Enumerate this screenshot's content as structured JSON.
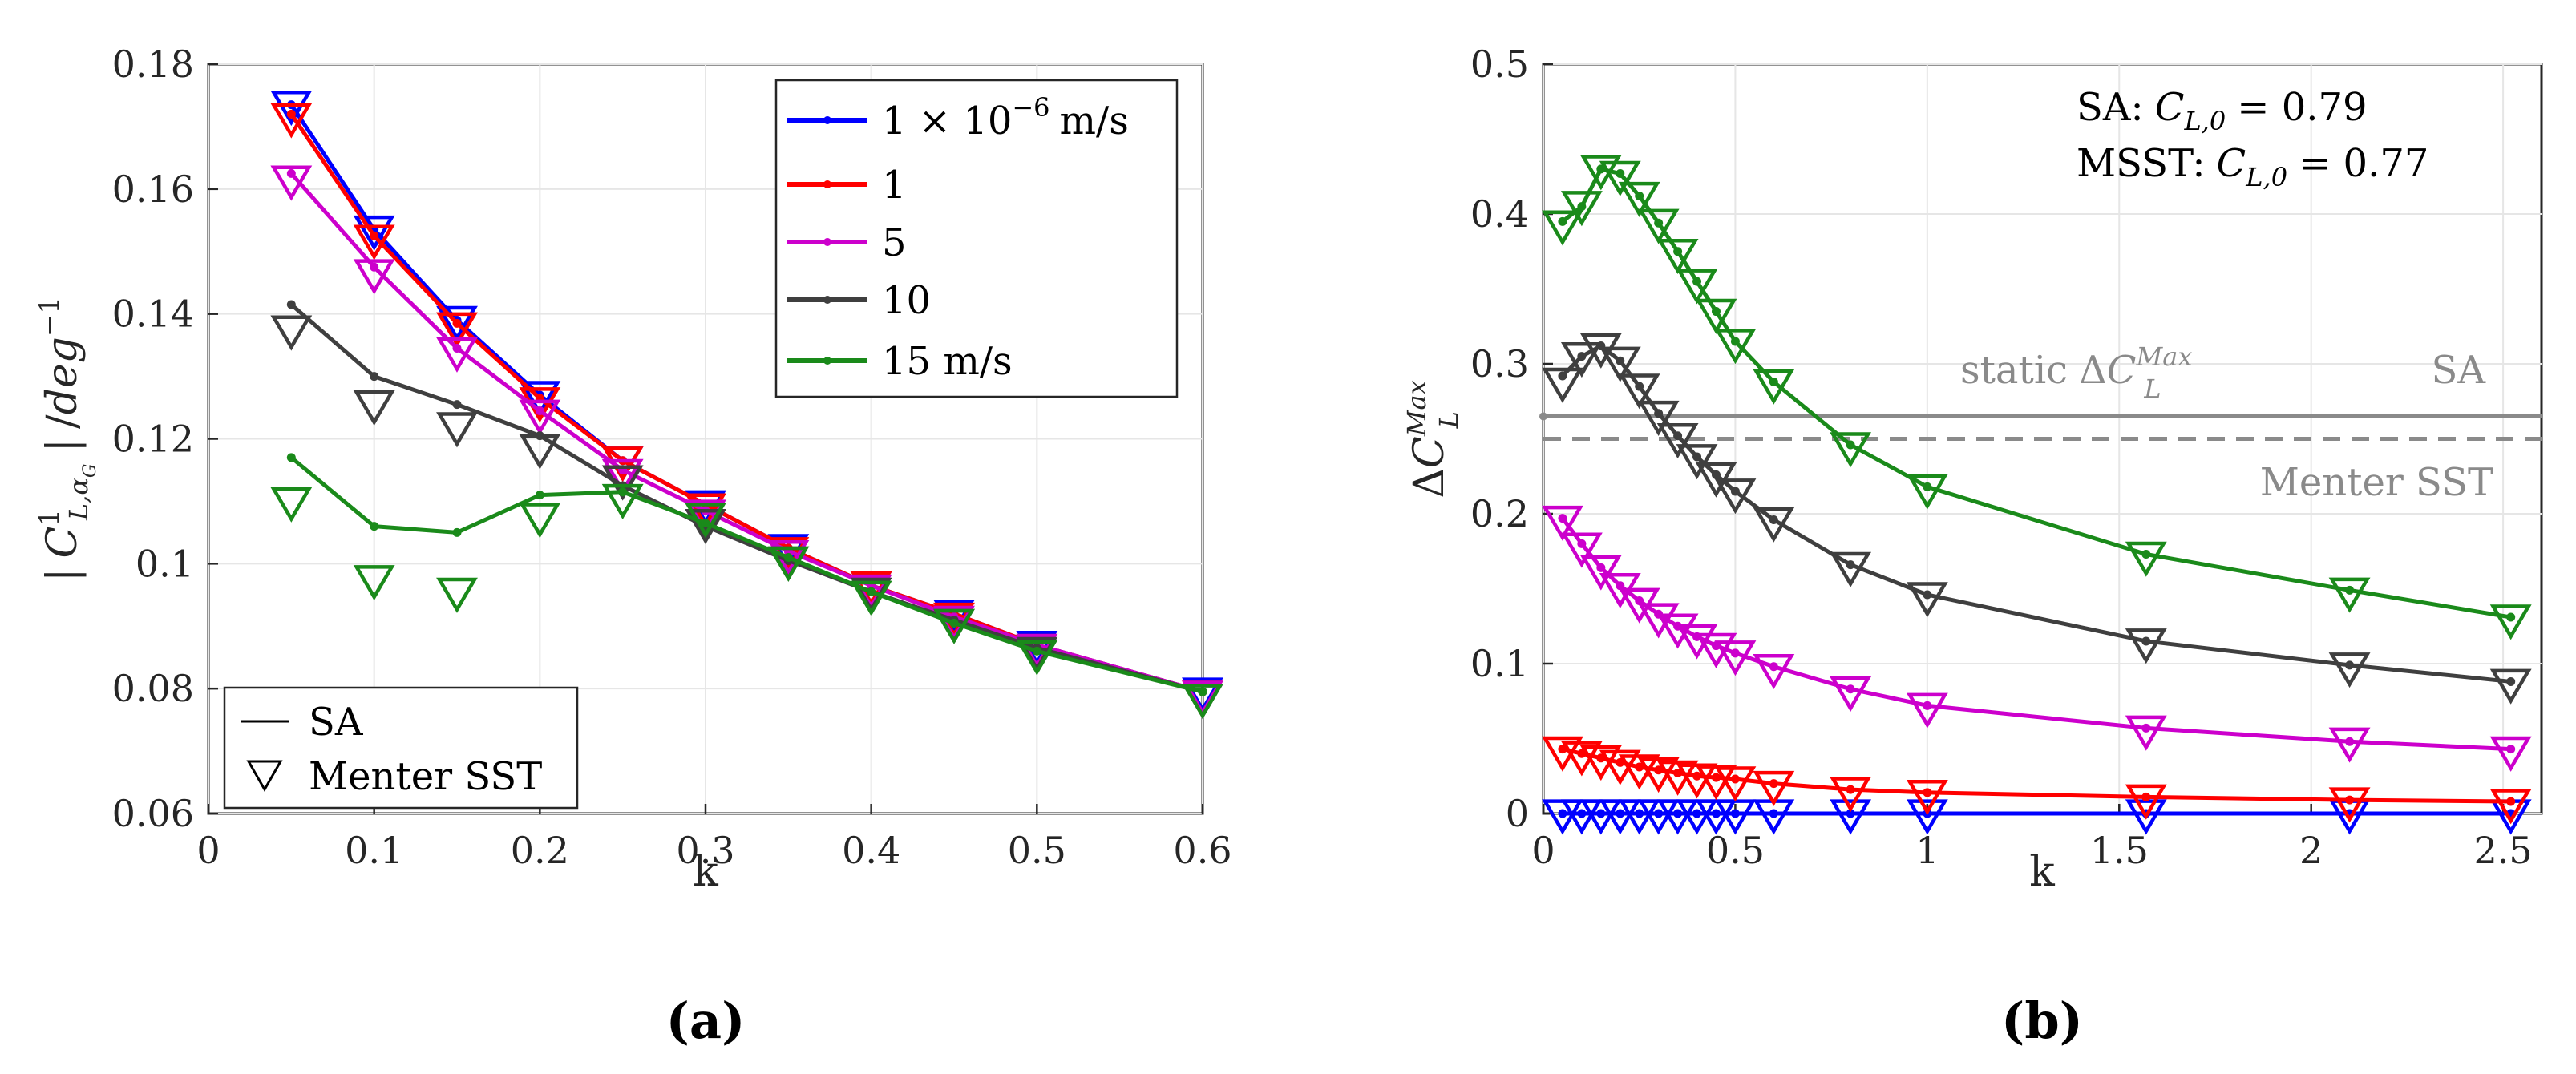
{
  "chart_data": [
    {
      "type": "line",
      "panel": "(a)",
      "xlabel": "k",
      "ylabel": "| C¹_{L,αG} | /deg⁻¹",
      "xlim": [
        0,
        0.6
      ],
      "ylim": [
        0.06,
        0.18
      ],
      "xticks": [
        "0",
        "0.1",
        "0.2",
        "0.3",
        "0.4",
        "0.5",
        "0.6"
      ],
      "yticks": [
        "0.06",
        "0.08",
        "0.1",
        "0.12",
        "0.14",
        "0.16",
        "0.18"
      ],
      "grid": true,
      "series": [
        {
          "name": "1 × 10⁻⁶ m/s",
          "color": "#0000ff",
          "sa": {
            "x": [
              0.05,
              0.1,
              0.15,
              0.2,
              0.25,
              0.3,
              0.35,
              0.4,
              0.45,
              0.5,
              0.6
            ],
            "y": [
              0.1735,
              0.1535,
              0.139,
              0.127,
              0.1165,
              0.1095,
              0.1025,
              0.0965,
              0.092,
              0.087,
              0.0795
            ]
          },
          "sst": {
            "x": [
              0.05,
              0.1,
              0.15,
              0.2,
              0.25,
              0.3,
              0.35,
              0.4,
              0.45,
              0.5,
              0.6
            ],
            "y": [
              0.1735,
              0.1535,
              0.139,
              0.127,
              0.1165,
              0.1095,
              0.1025,
              0.0965,
              0.092,
              0.087,
              0.0795
            ]
          }
        },
        {
          "name": "1",
          "color": "#ff0000",
          "sa": {
            "x": [
              0.05,
              0.1,
              0.15,
              0.2,
              0.25,
              0.3,
              0.35,
              0.4,
              0.45,
              0.5,
              0.6
            ],
            "y": [
              0.172,
              0.1525,
              0.1385,
              0.1265,
              0.1165,
              0.1095,
              0.1025,
              0.0965,
              0.092,
              0.087,
              0.0795
            ]
          },
          "sst": {
            "x": [
              0.05,
              0.1,
              0.15,
              0.2,
              0.25,
              0.3,
              0.35,
              0.4,
              0.45,
              0.5,
              0.6
            ],
            "y": [
              0.1715,
              0.152,
              0.138,
              0.126,
              0.1165,
              0.109,
              0.102,
              0.0965,
              0.0915,
              0.0865,
              0.079
            ]
          }
        },
        {
          "name": "5",
          "color": "#cc00cc",
          "sa": {
            "x": [
              0.05,
              0.1,
              0.15,
              0.2,
              0.25,
              0.3,
              0.35,
              0.4,
              0.45,
              0.5,
              0.6
            ],
            "y": [
              0.1625,
              0.1475,
              0.1345,
              0.1245,
              0.115,
              0.1085,
              0.102,
              0.0965,
              0.0915,
              0.087,
              0.0795
            ]
          },
          "sst": {
            "x": [
              0.05,
              0.1,
              0.15,
              0.2,
              0.25,
              0.3,
              0.35,
              0.4,
              0.45,
              0.5,
              0.6
            ],
            "y": [
              0.1615,
              0.1465,
              0.134,
              0.124,
              0.1145,
              0.108,
              0.1015,
              0.096,
              0.091,
              0.0865,
              0.079
            ]
          }
        },
        {
          "name": "10",
          "color": "#3f3f3f",
          "sa": {
            "x": [
              0.05,
              0.1,
              0.15,
              0.2,
              0.25,
              0.3,
              0.35,
              0.4,
              0.45,
              0.5,
              0.6
            ],
            "y": [
              0.1415,
              0.13,
              0.1255,
              0.1205,
              0.1125,
              0.106,
              0.1005,
              0.0955,
              0.091,
              0.0865,
              0.0795
            ]
          },
          "sst": {
            "x": [
              0.05,
              0.1,
              0.15,
              0.2,
              0.25,
              0.3,
              0.35,
              0.4,
              0.45,
              0.5,
              0.6
            ],
            "y": [
              0.1375,
              0.1255,
              0.122,
              0.1185,
              0.1135,
              0.1065,
              0.1005,
              0.0955,
              0.0905,
              0.086,
              0.0785
            ]
          }
        },
        {
          "name": "15 m/s",
          "color": "#1a8a1a",
          "sa": {
            "x": [
              0.05,
              0.1,
              0.15,
              0.2,
              0.25,
              0.3,
              0.35,
              0.4,
              0.45,
              0.5,
              0.6
            ],
            "y": [
              0.117,
              0.106,
              0.105,
              0.111,
              0.1115,
              0.1065,
              0.101,
              0.0955,
              0.0905,
              0.086,
              0.0795
            ]
          },
          "sst": {
            "x": [
              0.05,
              0.1,
              0.15,
              0.2,
              0.25,
              0.3,
              0.35,
              0.4,
              0.45,
              0.5,
              0.6
            ],
            "y": [
              0.11,
              0.0975,
              0.0955,
              0.1075,
              0.1105,
              0.1075,
              0.1005,
              0.095,
              0.0905,
              0.0855,
              0.0785
            ]
          }
        }
      ],
      "legend_top": {
        "entries": [
          "1 × 10",
          "−6",
          "m/s",
          "1",
          "5",
          "10",
          "15 m/s"
        ],
        "placement": "top-right"
      },
      "legend_bottom": {
        "entries": [
          "SA",
          "Menter SST"
        ],
        "placement": "bottom-left"
      }
    },
    {
      "type": "line",
      "panel": "(b)",
      "xlabel": "k",
      "ylabel": "ΔC_L^{Max}",
      "xlim": [
        0,
        2.6
      ],
      "ylim": [
        0,
        0.5
      ],
      "xticks": [
        "0",
        "0.5",
        "1",
        "1.5",
        "2",
        "2.5"
      ],
      "yticks": [
        "0",
        "0.1",
        "0.2",
        "0.3",
        "0.4",
        "0.5"
      ],
      "grid": true,
      "series": [
        {
          "name": "1 × 10⁻⁶ m/s",
          "color": "#0000ff",
          "sa": {
            "x": [
              0.05,
              0.1,
              0.15,
              0.2,
              0.25,
              0.3,
              0.35,
              0.4,
              0.45,
              0.5,
              0.6,
              0.8,
              1.0,
              1.57,
              2.1,
              2.52
            ],
            "y": [
              0,
              0,
              0,
              0,
              0,
              0,
              0,
              0,
              0,
              0,
              0,
              0,
              0,
              0,
              0,
              0
            ]
          },
          "sst": {
            "x": [
              0.05,
              0.1,
              0.15,
              0.2,
              0.25,
              0.3,
              0.35,
              0.4,
              0.45,
              0.5,
              0.6,
              0.8,
              1.0,
              1.57,
              2.1,
              2.52
            ],
            "y": [
              0,
              0,
              0,
              0,
              0,
              0,
              0,
              0,
              0,
              0,
              0,
              0,
              0,
              0,
              0,
              0
            ]
          }
        },
        {
          "name": "1",
          "color": "#ff0000",
          "sa": {
            "x": [
              0.05,
              0.1,
              0.15,
              0.2,
              0.25,
              0.3,
              0.35,
              0.4,
              0.45,
              0.5,
              0.6,
              0.8,
              1.0,
              1.57,
              2.1,
              2.52
            ],
            "y": [
              0.043,
              0.04,
              0.037,
              0.034,
              0.031,
              0.029,
              0.027,
              0.025,
              0.024,
              0.023,
              0.02,
              0.016,
              0.014,
              0.011,
              0.009,
              0.008
            ]
          },
          "sst": {
            "x": [
              0.05,
              0.1,
              0.15,
              0.2,
              0.25,
              0.3,
              0.35,
              0.4,
              0.45,
              0.5,
              0.6,
              0.8,
              1.0,
              1.57,
              2.1,
              2.52
            ],
            "y": [
              0.042,
              0.039,
              0.036,
              0.033,
              0.03,
              0.028,
              0.026,
              0.024,
              0.023,
              0.022,
              0.019,
              0.015,
              0.013,
              0.01,
              0.008,
              0.007
            ]
          }
        },
        {
          "name": "5",
          "color": "#cc00cc",
          "sa": {
            "x": [
              0.05,
              0.1,
              0.15,
              0.2,
              0.25,
              0.3,
              0.35,
              0.4,
              0.45,
              0.5,
              0.6,
              0.8,
              1.0,
              1.57,
              2.1,
              2.52
            ],
            "y": [
              0.197,
              0.18,
              0.164,
              0.152,
              0.142,
              0.133,
              0.125,
              0.118,
              0.112,
              0.107,
              0.098,
              0.083,
              0.072,
              0.057,
              0.048,
              0.043
            ]
          },
          "sst": {
            "x": [
              0.05,
              0.1,
              0.15,
              0.2,
              0.25,
              0.3,
              0.35,
              0.4,
              0.45,
              0.5,
              0.6,
              0.8,
              1.0,
              1.57,
              2.1,
              2.52
            ],
            "y": [
              0.196,
              0.178,
              0.163,
              0.151,
              0.141,
              0.131,
              0.124,
              0.117,
              0.111,
              0.106,
              0.097,
              0.082,
              0.071,
              0.056,
              0.048,
              0.042
            ]
          }
        },
        {
          "name": "10",
          "color": "#3f3f3f",
          "sa": {
            "x": [
              0.05,
              0.1,
              0.15,
              0.2,
              0.25,
              0.3,
              0.35,
              0.4,
              0.45,
              0.5,
              0.6,
              0.8,
              1.0,
              1.57,
              2.1,
              2.52
            ],
            "y": [
              0.292,
              0.305,
              0.312,
              0.302,
              0.285,
              0.267,
              0.252,
              0.238,
              0.226,
              0.215,
              0.196,
              0.166,
              0.146,
              0.115,
              0.099,
              0.088
            ]
          },
          "sst": {
            "x": [
              0.05,
              0.1,
              0.15,
              0.2,
              0.25,
              0.3,
              0.35,
              0.4,
              0.45,
              0.5,
              0.6,
              0.8,
              1.0,
              1.57,
              2.1,
              2.52
            ],
            "y": [
              0.288,
              0.305,
              0.311,
              0.302,
              0.284,
              0.266,
              0.251,
              0.237,
              0.225,
              0.214,
              0.195,
              0.165,
              0.145,
              0.114,
              0.098,
              0.087
            ]
          }
        },
        {
          "name": "15 m/s",
          "color": "#1a8a1a",
          "sa": {
            "x": [
              0.05,
              0.1,
              0.15,
              0.2,
              0.25,
              0.3,
              0.35,
              0.4,
              0.45,
              0.5,
              0.6,
              0.8,
              1.0,
              1.57,
              2.1,
              2.52
            ],
            "y": [
              0.395,
              0.405,
              0.43,
              0.427,
              0.412,
              0.394,
              0.375,
              0.355,
              0.335,
              0.315,
              0.288,
              0.246,
              0.218,
              0.173,
              0.149,
              0.131
            ]
          },
          "sst": {
            "x": [
              0.05,
              0.1,
              0.15,
              0.2,
              0.25,
              0.3,
              0.35,
              0.4,
              0.45,
              0.5,
              0.6,
              0.8,
              1.0,
              1.57,
              2.1,
              2.52
            ],
            "y": [
              0.393,
              0.406,
              0.43,
              0.426,
              0.412,
              0.394,
              0.374,
              0.354,
              0.334,
              0.314,
              0.287,
              0.245,
              0.217,
              0.172,
              0.148,
              0.13
            ]
          }
        }
      ],
      "reference_lines": [
        {
          "name": "SA",
          "y": 0.265,
          "style": "solid",
          "color": "#8a8a8a"
        },
        {
          "name": "Menter SST",
          "y": 0.25,
          "style": "dashed",
          "color": "#8a8a8a"
        }
      ],
      "annotations": {
        "sa_label": "SA:",
        "sa_value": "= 0.79",
        "msst_label": "MSST:",
        "msst_value": "= 0.77",
        "static_label": "static",
        "ref_sa": "SA",
        "ref_sst": "Menter SST"
      }
    }
  ]
}
